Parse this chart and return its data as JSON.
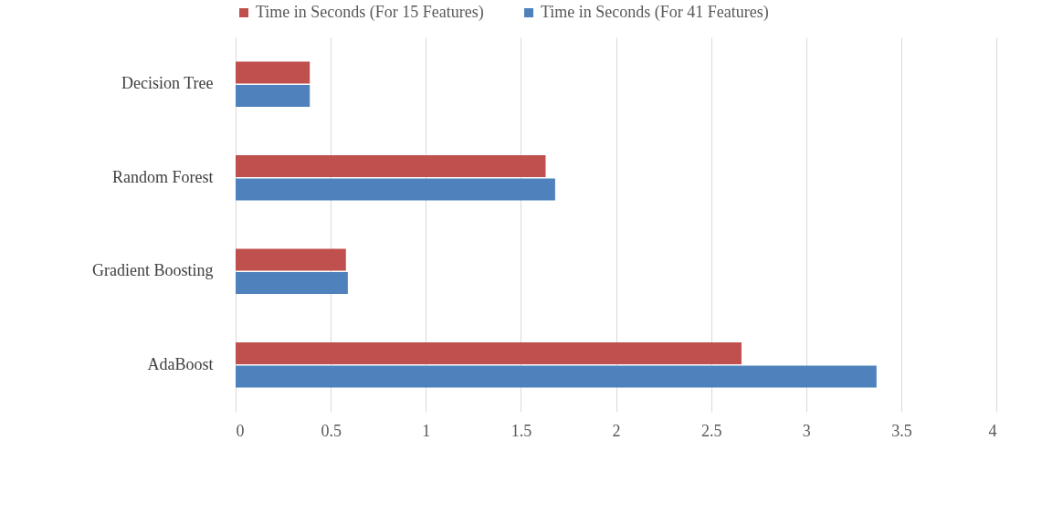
{
  "chart_data": {
    "type": "bar",
    "orientation": "horizontal",
    "categories": [
      "Decision Tree",
      "Random Forest",
      "Gradient Boosting",
      "AdaBoost"
    ],
    "series": [
      {
        "name": "Time in Seconds (For 15 Features)",
        "color": "#c0504d",
        "values": [
          0.39,
          1.63,
          0.58,
          2.66
        ]
      },
      {
        "name": "Time in Seconds (For 41 Features)",
        "color": "#4f81bd",
        "values": [
          0.39,
          1.68,
          0.59,
          3.37
        ]
      }
    ],
    "xlim": [
      0,
      4
    ],
    "xticks": [
      0,
      0.5,
      1,
      1.5,
      2,
      2.5,
      3,
      3.5,
      4
    ],
    "grid": "x",
    "legend": "top"
  }
}
